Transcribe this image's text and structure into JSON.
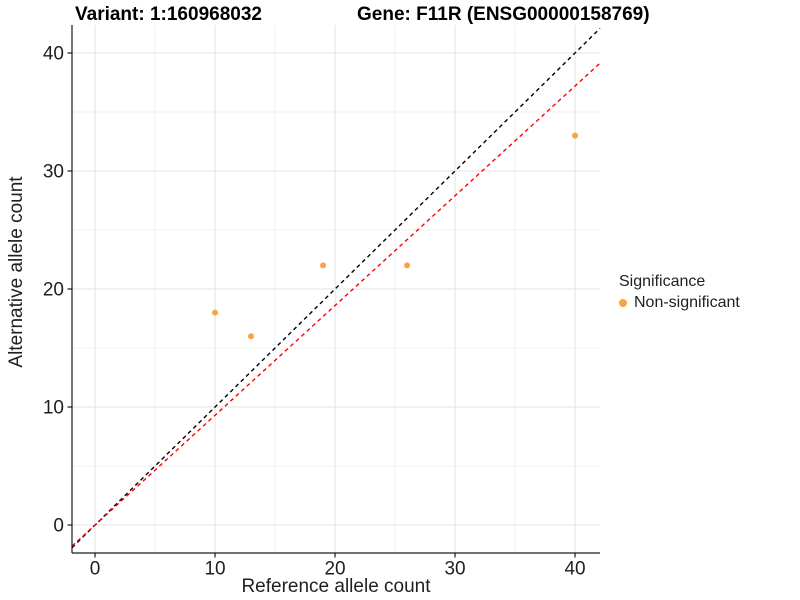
{
  "chart_data": {
    "type": "scatter",
    "titles": {
      "left": "Variant: 1:160968032",
      "right": "Gene: F11R (ENSG00000158769)"
    },
    "xlabel": "Reference allele count",
    "ylabel": "Alternative allele count",
    "xlim": [
      -1.92,
      42.08
    ],
    "ylim": [
      -2.37,
      42.37
    ],
    "x_ticks": [
      0,
      10,
      20,
      30,
      40
    ],
    "y_ticks": [
      0,
      10,
      20,
      30,
      40
    ],
    "x_minor_ticks": [
      5,
      15,
      25,
      35
    ],
    "y_minor_ticks": [
      5,
      15,
      25,
      35
    ],
    "grid": {
      "on": true,
      "major_color": "#E3E3E3",
      "minor_color": "#F0F0F0"
    },
    "axis_color": "#1a1a1a",
    "tick_label_color": "#1f1f1f",
    "series": [
      {
        "name": "Non-significant",
        "color": "#F9A242",
        "points": [
          {
            "x": 10,
            "y": 18
          },
          {
            "x": 13,
            "y": 16
          },
          {
            "x": 19,
            "y": 22
          },
          {
            "x": 26,
            "y": 22
          },
          {
            "x": 40,
            "y": 33
          }
        ]
      }
    ],
    "ref_lines": [
      {
        "name": "identity-line",
        "slope": 1.0,
        "intercept": 0,
        "color": "#000000",
        "style": "dashed"
      },
      {
        "name": "fit-line",
        "slope": 0.93,
        "intercept": 0,
        "color": "#FF0000",
        "style": "dashed"
      }
    ],
    "legend": {
      "position": "right",
      "title": "Significance",
      "items": [
        {
          "label": "Non-significant",
          "color": "#F9A242"
        }
      ]
    }
  }
}
